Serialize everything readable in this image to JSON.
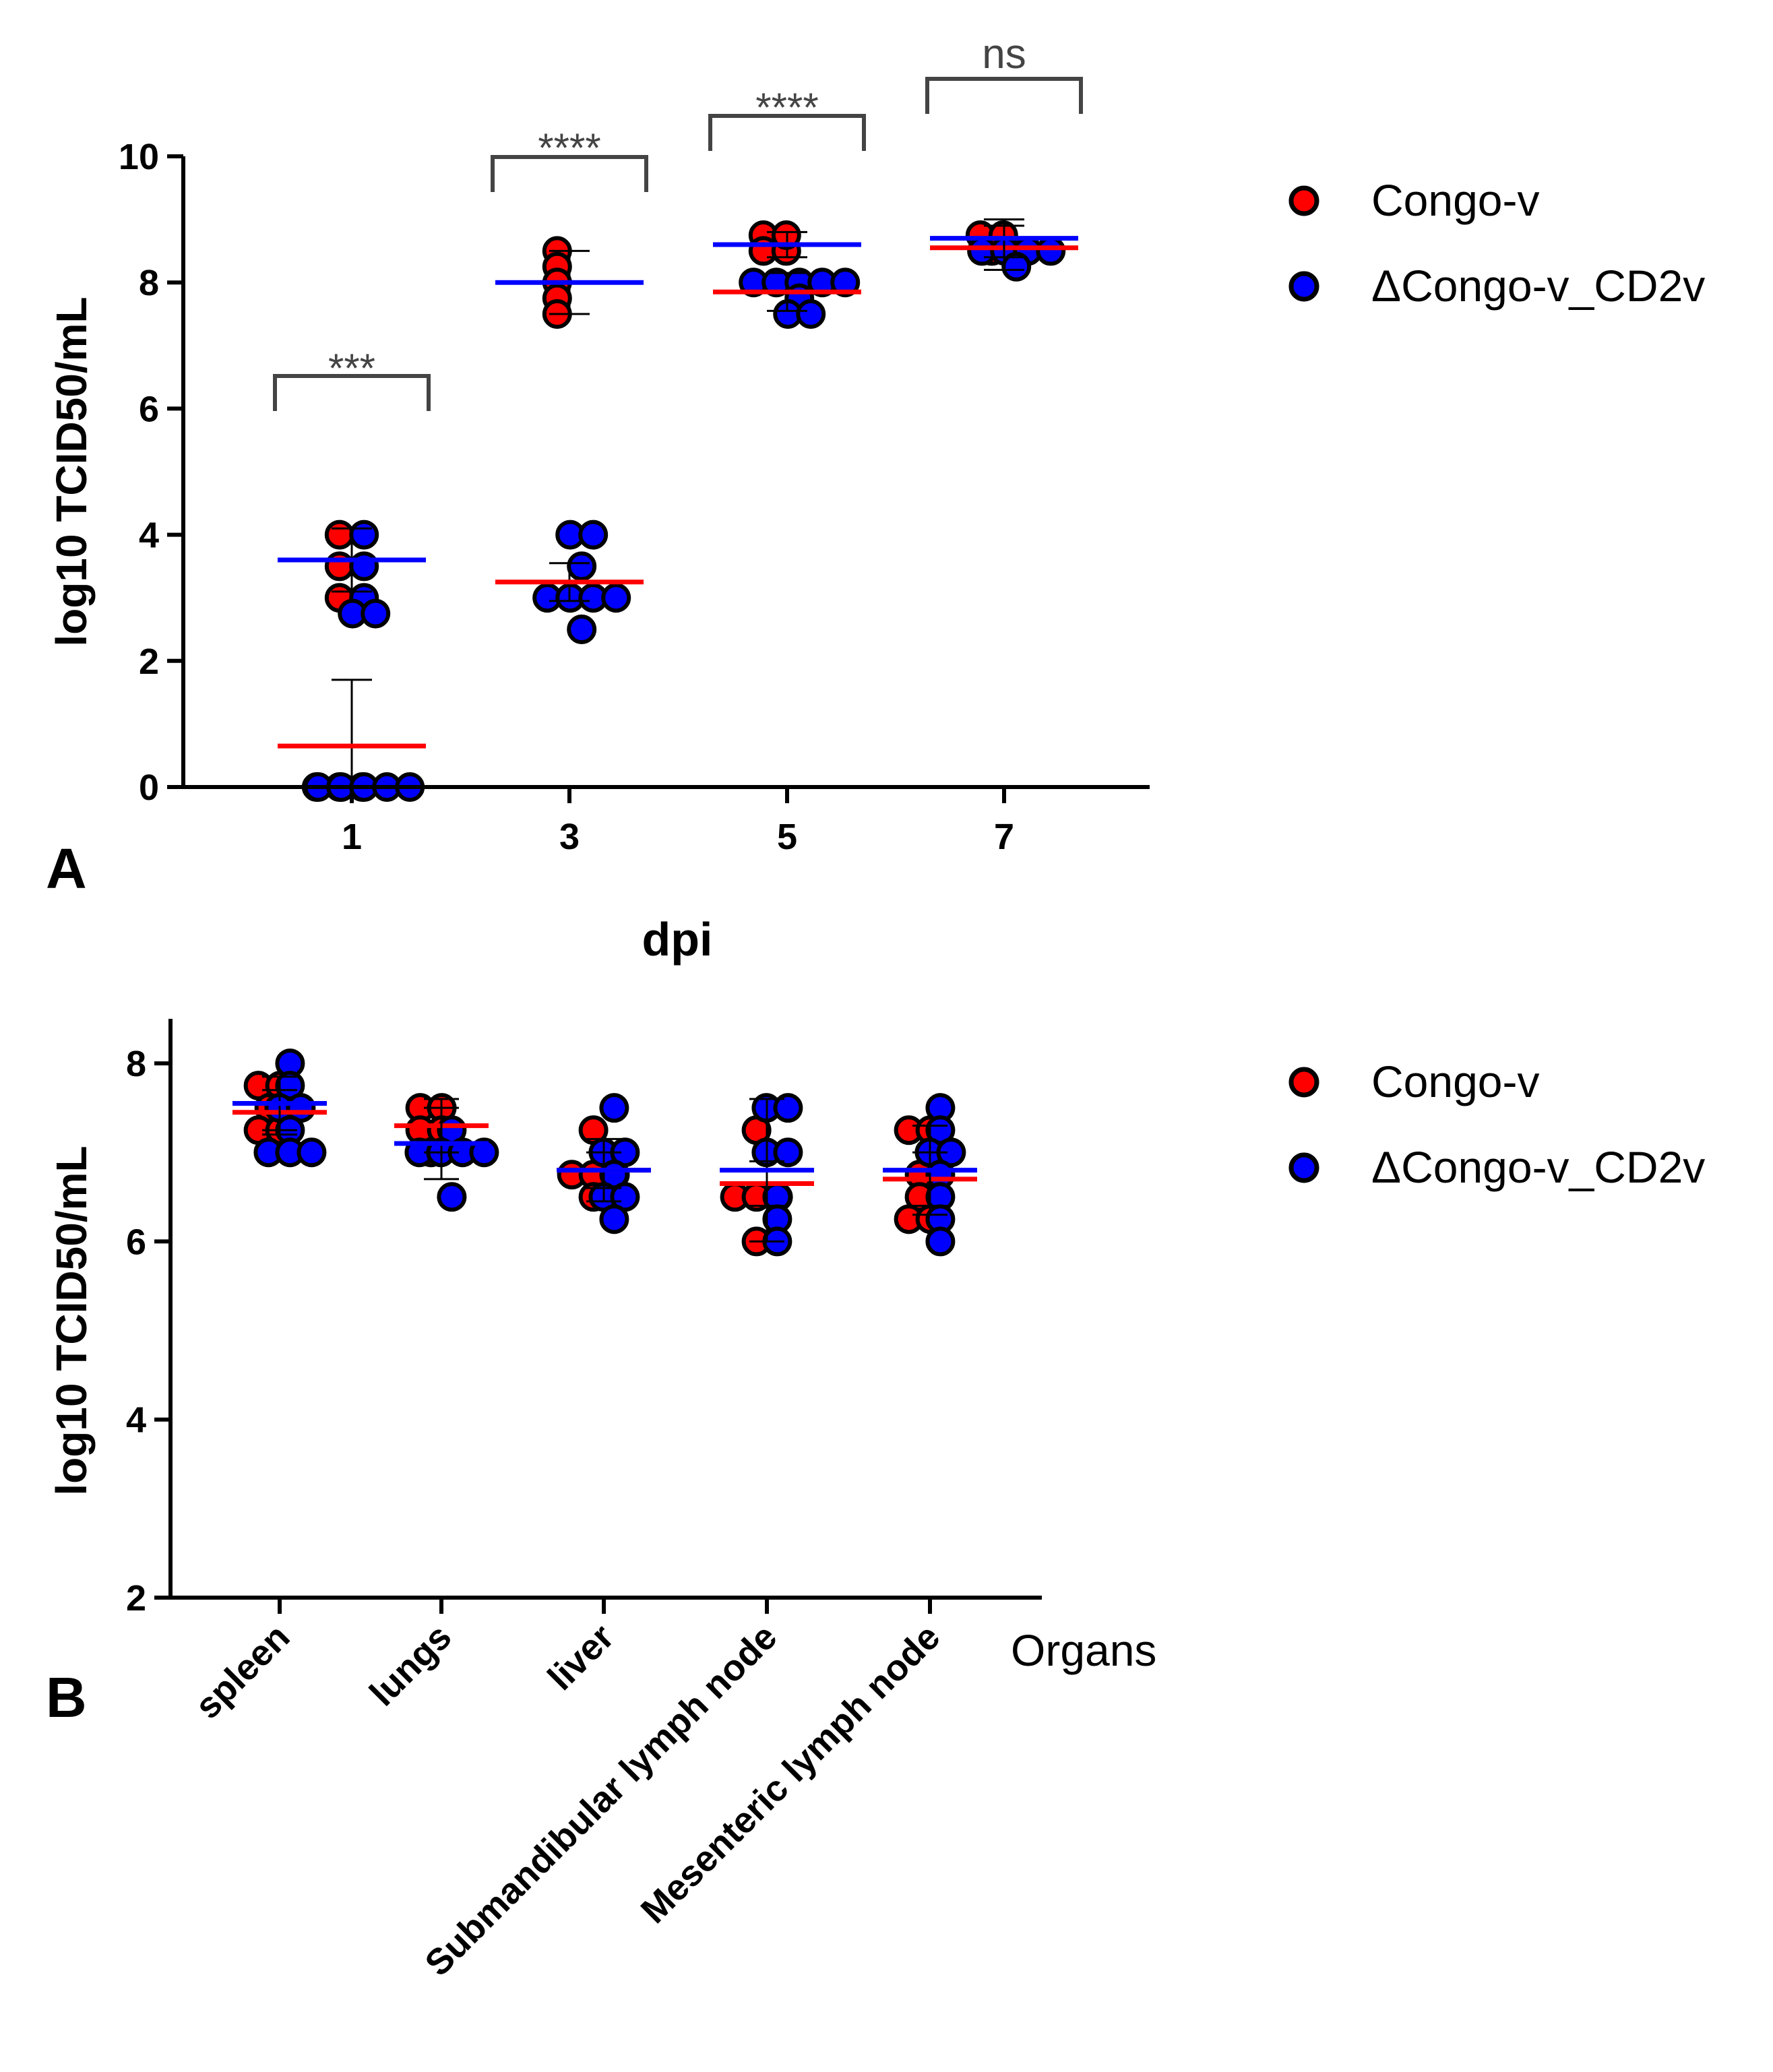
{
  "chart_data": [
    {
      "panel_label": "A",
      "type": "scatter",
      "xlabel": "dpi",
      "ylabel": "log10 TCID50/mL",
      "ylim": [
        0,
        10
      ],
      "y_ticks": [
        "0",
        "2",
        "4",
        "6",
        "8",
        "10"
      ],
      "categories": [
        "1",
        "3",
        "5",
        "7"
      ],
      "significance": [
        "***",
        "****",
        "****",
        "ns"
      ],
      "legend_position": "right",
      "series": [
        {
          "name": "Congo-v",
          "color": "#ff0000",
          "means": [
            0.65,
            3.25,
            7.85,
            8.55
          ],
          "sd": [
            1.05,
            0.3,
            0.3,
            0.35
          ],
          "points": [
            [
              4.0,
              3.5,
              3.0,
              0,
              0,
              0
            ],
            [
              8.5,
              8.25,
              8.0,
              7.75,
              7.5
            ],
            [
              8.75,
              8.5,
              8.5,
              8.75
            ],
            [
              8.75,
              8.75,
              8.5
            ]
          ]
        },
        {
          "name": "ΔCongo-v_CD2v",
          "color": "#0000ff",
          "means": [
            3.6,
            8.0,
            8.6,
            8.7
          ],
          "sd": [
            0.5,
            0.5,
            0.2,
            0.3
          ],
          "points": [
            [
              4.0,
              3.5,
              3.0,
              2.75,
              2.75,
              0,
              0,
              0,
              0,
              0
            ],
            [
              4.0,
              4.0,
              3.5,
              3.0,
              3.0,
              3.0,
              3.0,
              2.5
            ],
            [
              8.0,
              8.0,
              8.0,
              8.0,
              8.0,
              7.75,
              7.5,
              7.5
            ],
            [
              8.5,
              8.5,
              8.5,
              8.5,
              8.25
            ]
          ]
        }
      ]
    },
    {
      "panel_label": "B",
      "type": "scatter",
      "xlabel": "Organs",
      "ylabel": "log10 TCID50/mL",
      "ylim": [
        2,
        8.5
      ],
      "y_ticks": [
        "2",
        "4",
        "6",
        "8"
      ],
      "categories": [
        "spleen",
        "lungs",
        "liver",
        "Submandibular lymph node",
        "Mesenteric lymph node"
      ],
      "legend_position": "right",
      "series": [
        {
          "name": "Congo-v",
          "color": "#ff0000",
          "means": [
            7.45,
            7.3,
            6.8,
            6.65,
            6.7
          ],
          "sd": [
            0.25,
            0.3,
            0.2,
            0.25,
            0.3
          ],
          "points": [
            [
              7.75,
              7.75,
              7.5,
              7.25,
              7.25
            ],
            [
              7.5,
              7.5,
              7.25,
              7.0,
              7.25
            ],
            [
              7.25,
              6.75,
              6.75,
              6.75,
              6.5
            ],
            [
              7.25,
              6.5,
              6.5,
              6.5,
              6.0
            ],
            [
              7.25,
              7.25,
              6.75,
              6.5,
              6.25,
              6.25
            ]
          ]
        },
        {
          "name": "ΔCongo-v_CD2v",
          "color": "#0000ff",
          "means": [
            7.55,
            7.1,
            6.8,
            6.8,
            6.8
          ],
          "sd": [
            0.3,
            0.4,
            0.35,
            0.8,
            0.5
          ],
          "points": [
            [
              8.0,
              7.75,
              7.5,
              7.5,
              7.25,
              7.0,
              7.0,
              7.0
            ],
            [
              7.25,
              7.0,
              7.0,
              7.0,
              7.0,
              6.5
            ],
            [
              7.5,
              7.0,
              7.0,
              6.75,
              6.5,
              6.5,
              6.25
            ],
            [
              7.5,
              7.5,
              7.0,
              7.0,
              6.5,
              6.25,
              6.0
            ],
            [
              7.5,
              7.25,
              7.0,
              7.0,
              6.75,
              6.5,
              6.25,
              6.0
            ]
          ]
        }
      ]
    }
  ],
  "legend": {
    "items": [
      {
        "label": "Congo-v",
        "color": "#ff0000"
      },
      {
        "label": "ΔCongo-v_CD2v",
        "color": "#0000ff"
      }
    ]
  }
}
